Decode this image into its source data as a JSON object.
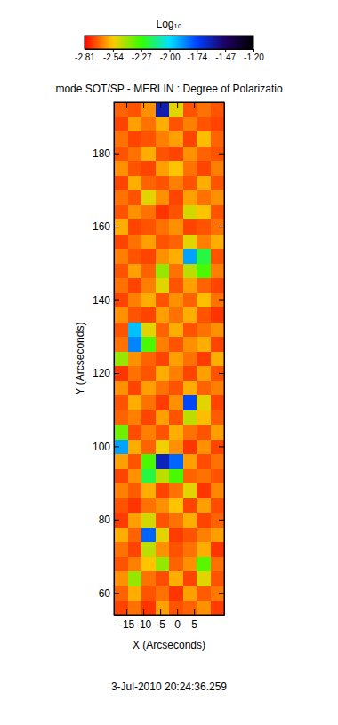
{
  "chart_data": {
    "type": "heatmap",
    "title": "mode SOT/SP - MERLIN : Degree of Polarizatio",
    "x_label": "X (Arcseconds)",
    "y_label": "Y (Arcseconds)",
    "date": "3-Jul-2010 20:24:36.259",
    "xlim": [
      -18.7,
      13.9
    ],
    "ylim": [
      54,
      194
    ],
    "xticks": [
      -15,
      -10,
      -5,
      0,
      5
    ],
    "yticks": [
      60,
      80,
      100,
      120,
      140,
      160,
      180
    ],
    "x_edges": [
      -18.7,
      -14.625,
      -10.55,
      -6.475,
      -2.4,
      1.675,
      5.75,
      9.825,
      13.9
    ],
    "y_edges": [
      54,
      58,
      62,
      66,
      70,
      74,
      78,
      82,
      86,
      90,
      94,
      98,
      102,
      106,
      110,
      114,
      118,
      122,
      126,
      130,
      134,
      138,
      142,
      146,
      150,
      154,
      158,
      162,
      166,
      170,
      174,
      178,
      182,
      186,
      190,
      194
    ],
    "z": [
      [
        -2.72,
        -2.66,
        -2.74,
        -2.6,
        -2.7,
        -2.68,
        -2.62,
        -2.73
      ],
      [
        -2.68,
        -2.58,
        -2.7,
        -2.66,
        -2.74,
        -2.6,
        -2.69,
        -2.65
      ],
      [
        -2.62,
        -2.4,
        -2.66,
        -2.71,
        -2.58,
        -2.72,
        -2.5,
        -2.7
      ],
      [
        -2.7,
        -2.64,
        -2.55,
        -2.4,
        -2.68,
        -2.62,
        -2.32,
        -2.66
      ],
      [
        -2.66,
        -2.72,
        -2.45,
        -2.62,
        -2.7,
        -2.66,
        -2.58,
        -2.74
      ],
      [
        -2.58,
        -2.68,
        -1.8,
        -2.5,
        -2.73,
        -2.7,
        -2.64,
        -2.6
      ],
      [
        -2.73,
        -2.6,
        -2.48,
        -2.7,
        -2.66,
        -2.58,
        -2.72,
        -2.68
      ],
      [
        -2.7,
        -2.74,
        -2.66,
        -2.62,
        -2.55,
        -2.72,
        -2.6,
        -2.71
      ],
      [
        -2.64,
        -2.69,
        -2.58,
        -2.72,
        -2.66,
        -2.5,
        -2.74,
        -2.63
      ],
      [
        -2.72,
        -2.62,
        -2.2,
        -2.45,
        -2.3,
        -2.68,
        -2.66,
        -2.7
      ],
      [
        -2.6,
        -2.7,
        -2.3,
        -1.62,
        -1.8,
        -2.6,
        -2.71,
        -2.66
      ],
      [
        -1.9,
        -2.58,
        -2.68,
        -2.52,
        -2.62,
        -2.74,
        -2.62,
        -2.72
      ],
      [
        -2.35,
        -2.71,
        -2.64,
        -2.7,
        -2.58,
        -2.66,
        -2.7,
        -2.6
      ],
      [
        -2.68,
        -2.64,
        -2.72,
        -2.6,
        -2.7,
        -2.45,
        -2.56,
        -2.69
      ],
      [
        -2.7,
        -2.58,
        -2.66,
        -2.73,
        -2.62,
        -1.75,
        -2.5,
        -2.72
      ],
      [
        -2.62,
        -2.72,
        -2.6,
        -2.66,
        -2.7,
        -2.58,
        -2.68,
        -2.64
      ],
      [
        -2.74,
        -2.66,
        -2.7,
        -2.58,
        -2.64,
        -2.72,
        -2.6,
        -2.7
      ],
      [
        -2.4,
        -2.62,
        -2.68,
        -2.72,
        -2.6,
        -2.66,
        -2.73,
        -2.58
      ],
      [
        -2.66,
        -1.85,
        -2.3,
        -2.64,
        -2.7,
        -2.62,
        -2.58,
        -2.72
      ],
      [
        -2.7,
        -1.95,
        -2.5,
        -2.68,
        -2.58,
        -2.7,
        -2.66,
        -2.62
      ],
      [
        -2.62,
        -2.7,
        -2.72,
        -2.6,
        -2.66,
        -2.58,
        -2.7,
        -2.74
      ],
      [
        -2.72,
        -2.64,
        -2.58,
        -2.7,
        -2.62,
        -2.68,
        -2.56,
        -2.66
      ],
      [
        -2.66,
        -2.72,
        -2.64,
        -2.5,
        -2.7,
        -2.6,
        -2.68,
        -2.72
      ],
      [
        -2.7,
        -2.6,
        -2.68,
        -2.4,
        -2.66,
        -2.45,
        -2.3,
        -2.64
      ],
      [
        -2.64,
        -2.7,
        -2.72,
        -2.62,
        -2.58,
        -1.9,
        -2.2,
        -2.7
      ],
      [
        -2.72,
        -2.66,
        -2.6,
        -2.7,
        -2.68,
        -2.5,
        -2.64,
        -2.58
      ],
      [
        -2.58,
        -2.72,
        -2.7,
        -2.66,
        -2.62,
        -2.72,
        -2.7,
        -2.66
      ],
      [
        -2.7,
        -2.62,
        -2.66,
        -2.74,
        -2.7,
        -2.48,
        -2.55,
        -2.7
      ],
      [
        -2.66,
        -2.7,
        -2.5,
        -2.62,
        -2.72,
        -2.6,
        -2.66,
        -2.62
      ],
      [
        -2.72,
        -2.58,
        -2.68,
        -2.7,
        -2.64,
        -2.7,
        -2.58,
        -2.7
      ],
      [
        -2.62,
        -2.7,
        -2.72,
        -2.6,
        -2.55,
        -2.66,
        -2.72,
        -2.64
      ],
      [
        -2.7,
        -2.66,
        -2.58,
        -2.7,
        -2.72,
        -2.62,
        -2.68,
        -2.7
      ],
      [
        -2.66,
        -2.72,
        -2.7,
        -2.64,
        -2.6,
        -2.72,
        -2.56,
        -2.68
      ],
      [
        -2.72,
        -2.6,
        -2.66,
        -2.58,
        -2.7,
        -2.64,
        -2.7,
        -2.72
      ],
      [
        -2.68,
        -2.7,
        -2.62,
        -1.6,
        -2.5,
        -2.7,
        -2.66,
        -2.7
      ]
    ],
    "colorbar": {
      "title": "Log₁₀",
      "range": [
        -2.81,
        -1.2
      ],
      "ticks": [
        -2.81,
        -2.54,
        -2.27,
        {
          "value": -2,
          "label": "-2.00"
        },
        -1.74,
        -1.47,
        {
          "value": -1.2,
          "label": "-1.20"
        }
      ]
    }
  }
}
